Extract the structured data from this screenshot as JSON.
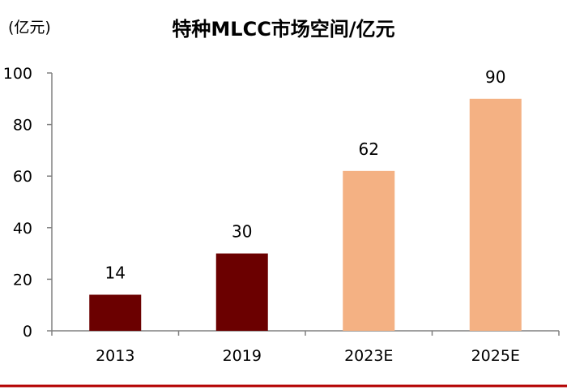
{
  "chart_data": {
    "type": "bar",
    "title": "特种MLCC市场空间/亿元",
    "unit_label": "(亿元)",
    "xlabel": "",
    "ylabel": "",
    "categories": [
      "2013",
      "2019",
      "2023E",
      "2025E"
    ],
    "values": [
      14,
      30,
      62,
      90
    ],
    "data_labels": [
      "14",
      "30",
      "62",
      "90"
    ],
    "bar_colors": [
      "#6b0000",
      "#6b0000",
      "#f4b183",
      "#f4b183"
    ],
    "ylim": [
      0,
      100
    ],
    "yticks": [
      0,
      20,
      40,
      60,
      80,
      100
    ],
    "ytick_labels": [
      "0",
      "20",
      "40",
      "60",
      "80",
      "100"
    ],
    "grid": false,
    "legend": "none"
  },
  "colors": {
    "axis": "#808080",
    "footer_rule": "#b30000"
  }
}
